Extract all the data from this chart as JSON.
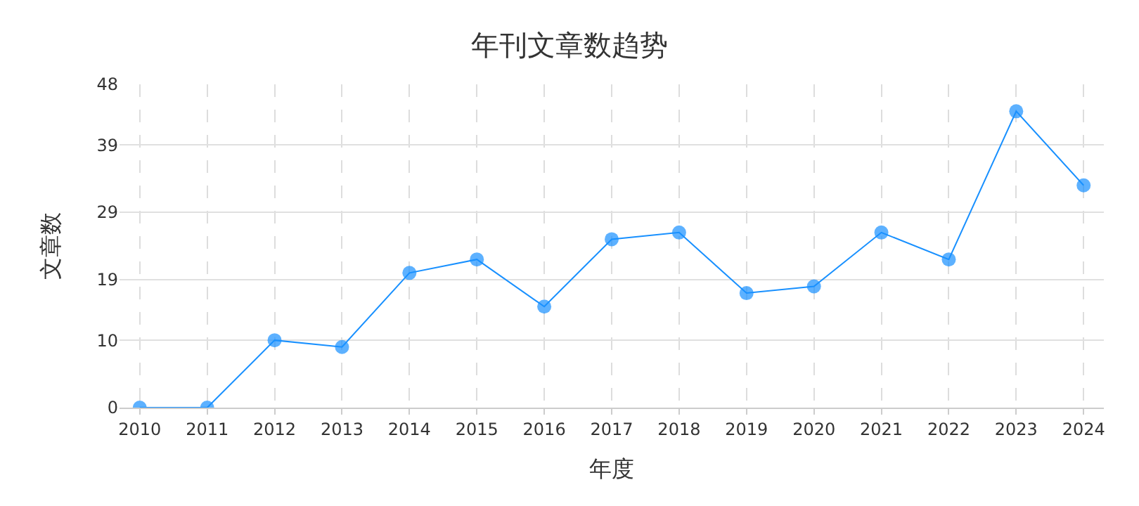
{
  "chart_data": {
    "type": "line",
    "title": "年刊文章数趋势",
    "xlabel": "年度",
    "ylabel": "文章数",
    "categories": [
      "2010",
      "2011",
      "2012",
      "2013",
      "2014",
      "2015",
      "2016",
      "2017",
      "2018",
      "2019",
      "2020",
      "2021",
      "2022",
      "2023",
      "2024"
    ],
    "series": [
      {
        "color": "#1890ff",
        "values": [
          0,
          0,
          10,
          9,
          20,
          22,
          15,
          25,
          26,
          17,
          18,
          26,
          22,
          44,
          33
        ]
      }
    ],
    "ylim": [
      0,
      48
    ],
    "yticks": [
      0,
      10,
      19,
      29,
      39,
      48
    ],
    "grid": true,
    "marker": "circle",
    "line_style": "solid"
  }
}
